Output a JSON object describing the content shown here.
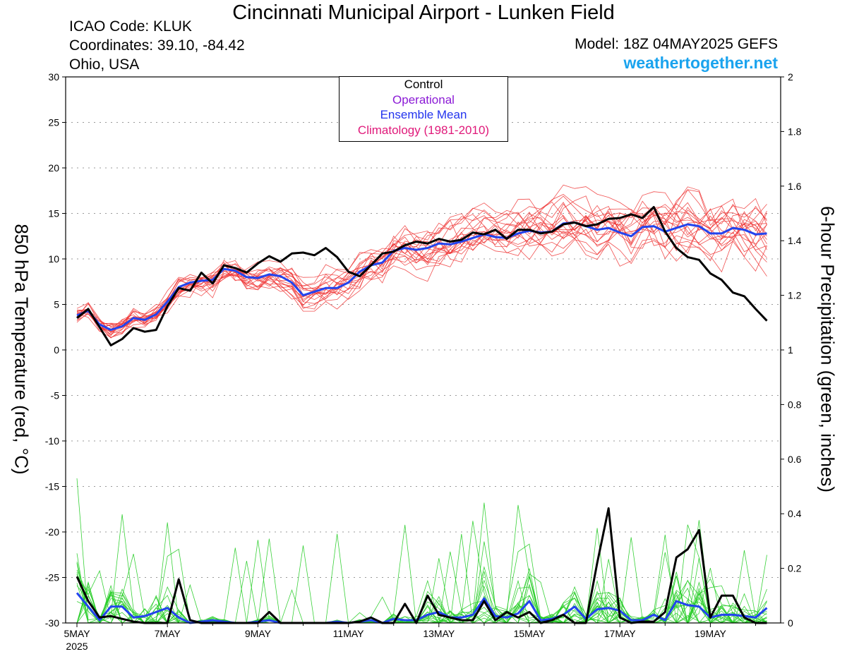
{
  "header": {
    "title": "Cincinnati Municipal Airport - Lunken Field",
    "icao": "ICAO Code: KLUK",
    "coordinates": "Coordinates: 39.10, -84.42",
    "region": "Ohio, USA",
    "model": "Model: 18Z 04MAY2025 GEFS",
    "site": "weathertogether.net"
  },
  "legend": {
    "items": [
      {
        "label": "Control",
        "color": "#000000"
      },
      {
        "label": "Operational",
        "color": "#8b1ad6"
      },
      {
        "label": "Ensemble Mean",
        "color": "#2233ee"
      },
      {
        "label": "Climatology (1981-2010)",
        "color": "#e0197a"
      }
    ]
  },
  "chart_data": {
    "type": "line",
    "title": "Cincinnati Municipal Airport - Lunken Field",
    "xlabel": "",
    "ylabel": "850 hPa Temperature (red, °C)",
    "ylabel2": "6-hour Precipitation (green, inches)",
    "ylim": [
      -30,
      30
    ],
    "y2lim": [
      0,
      2
    ],
    "yticks": [
      "30",
      "25",
      "20",
      "15",
      "10",
      "5",
      "0",
      "-5",
      "-10",
      "-15",
      "-20",
      "-25",
      "-30"
    ],
    "y2ticks": [
      "2",
      "1.8",
      "1.6",
      "1.4",
      "1.2",
      "1",
      "0.8",
      "0.6",
      "0.4",
      "0.2",
      "0"
    ],
    "x_tick_labels": [
      "5MAY",
      "7MAY",
      "9MAY",
      "11MAY",
      "13MAY",
      "15MAY",
      "17MAY",
      "19MAY"
    ],
    "x_tick_year": "2025",
    "x_unit": "days after 5MAY 00Z (6-hour steps)",
    "colors": {
      "members_temp": "#ee3333",
      "members_precip": "#22cc22",
      "control": "#000000",
      "mean": "#2244ee"
    },
    "series": [
      {
        "name": "Control",
        "kind": "temperature",
        "values": [
          3.5,
          4.5,
          2.5,
          0.5,
          1.2,
          2.4,
          2.0,
          2.2,
          4.8,
          6.8,
          6.5,
          8.5,
          7.3,
          9.3,
          9.0,
          8.5,
          9.5,
          10.3,
          9.7,
          10.6,
          10.7,
          10.4,
          11.2,
          10.2,
          8.6,
          8.1,
          9.3,
          10.6,
          10.8,
          11.5,
          11.9,
          11.7,
          12.2,
          11.9,
          12.1,
          12.9,
          12.7,
          13.2,
          12.2,
          13.2,
          13.2,
          12.8,
          13.0,
          13.8,
          14.0,
          13.6,
          13.8,
          14.4,
          14.5,
          14.9,
          14.5,
          15.7,
          13.0,
          11.2,
          10.2,
          9.9,
          8.4,
          7.7,
          6.3,
          5.9,
          4.5,
          3.2
        ]
      },
      {
        "name": "Ensemble Mean",
        "kind": "temperature",
        "values": [
          3.8,
          4.3,
          2.8,
          2.2,
          2.6,
          3.5,
          3.3,
          3.9,
          5.3,
          6.9,
          7.4,
          7.6,
          7.7,
          8.9,
          8.7,
          8.0,
          7.9,
          8.3,
          8.1,
          7.4,
          6.0,
          6.4,
          6.8,
          6.8,
          7.4,
          8.6,
          9.3,
          9.6,
          10.9,
          11.2,
          11.0,
          11.2,
          11.7,
          11.6,
          11.9,
          12.3,
          12.7,
          12.4,
          12.3,
          12.8,
          13.1,
          12.9,
          13.0,
          13.9,
          14.0,
          13.6,
          13.2,
          13.4,
          12.9,
          12.5,
          13.5,
          13.6,
          13.0,
          13.4,
          13.8,
          13.6,
          12.8,
          12.8,
          13.4,
          13.2,
          12.7,
          12.8
        ]
      },
      {
        "name": "Control",
        "kind": "precipitation",
        "values": [
          0.17,
          0.08,
          0.02,
          0.025,
          0.015,
          0.005,
          0,
          0,
          0,
          0.16,
          0.01,
          0,
          0,
          0,
          0,
          0,
          0,
          0.04,
          0,
          0,
          0,
          0,
          0,
          0,
          0,
          0.005,
          0.02,
          0,
          0,
          0.07,
          0,
          0.1,
          0.03,
          0.02,
          0.01,
          0.01,
          0.08,
          0.01,
          0.04,
          0.02,
          0.04,
          0,
          0.01,
          0.03,
          0,
          0,
          0.22,
          0.42,
          0.02,
          0,
          0.005,
          0.005,
          0.04,
          0.24,
          0.27,
          0.34,
          0.02,
          0.1,
          0.1,
          0.02,
          0,
          0
        ]
      },
      {
        "name": "Ensemble Mean",
        "kind": "precipitation",
        "values": [
          0.11,
          0.06,
          0.01,
          0.06,
          0.06,
          0.02,
          0.025,
          0.04,
          0.055,
          0.02,
          0,
          0.005,
          0.01,
          0.005,
          0,
          0,
          0.005,
          0.01,
          0,
          0,
          0,
          0,
          0,
          0.005,
          0,
          0.005,
          0.01,
          0,
          0.015,
          0.01,
          0.01,
          0.03,
          0.04,
          0.02,
          0.02,
          0.03,
          0.09,
          0.025,
          0.02,
          0.035,
          0.08,
          0.01,
          0.015,
          0.03,
          0.06,
          0.015,
          0.05,
          0.055,
          0.045,
          0.01,
          0.01,
          0.03,
          0.01,
          0.08,
          0.065,
          0.06,
          0.02,
          0.03,
          0.03,
          0.025,
          0.02,
          0.055
        ]
      }
    ]
  }
}
